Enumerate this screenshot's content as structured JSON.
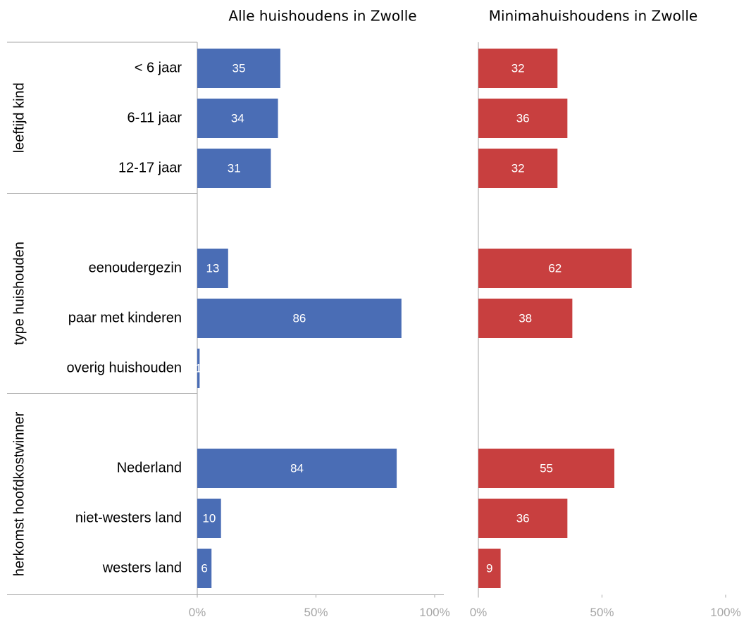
{
  "chart_data": [
    {
      "type": "bar",
      "orientation": "horizontal",
      "title": "Alle huishoudens in Zwolle",
      "categories": [
        "< 6 jaar",
        "6-11 jaar",
        "12-17 jaar",
        null,
        "eenoudergezin",
        "paar met kinderen",
        "overig huishouden",
        null,
        "Nederland",
        "niet-westers land",
        "westers land"
      ],
      "values": [
        35,
        34,
        31,
        null,
        13,
        86,
        1,
        null,
        84,
        10,
        6
      ],
      "color": "#4a6db5",
      "xlim": [
        0,
        100
      ],
      "xticks": [
        {
          "value": 0,
          "label": "0%"
        },
        {
          "value": 50,
          "label": "50%"
        },
        {
          "value": 100,
          "label": "100%"
        }
      ]
    },
    {
      "type": "bar",
      "orientation": "horizontal",
      "title": "Minimahuishoudens in Zwolle",
      "values": [
        32,
        36,
        32,
        null,
        62,
        38,
        null,
        null,
        55,
        36,
        9
      ],
      "color": "#c83f3f",
      "xlim": [
        0,
        100
      ],
      "xticks": [
        {
          "value": 0,
          "label": "0%"
        },
        {
          "value": 50,
          "label": "50%"
        },
        {
          "value": 100,
          "label": "100%"
        }
      ]
    }
  ],
  "groups": [
    "leeftijd kind",
    "type huishouden",
    "herkomst hoofdkostwinner"
  ]
}
